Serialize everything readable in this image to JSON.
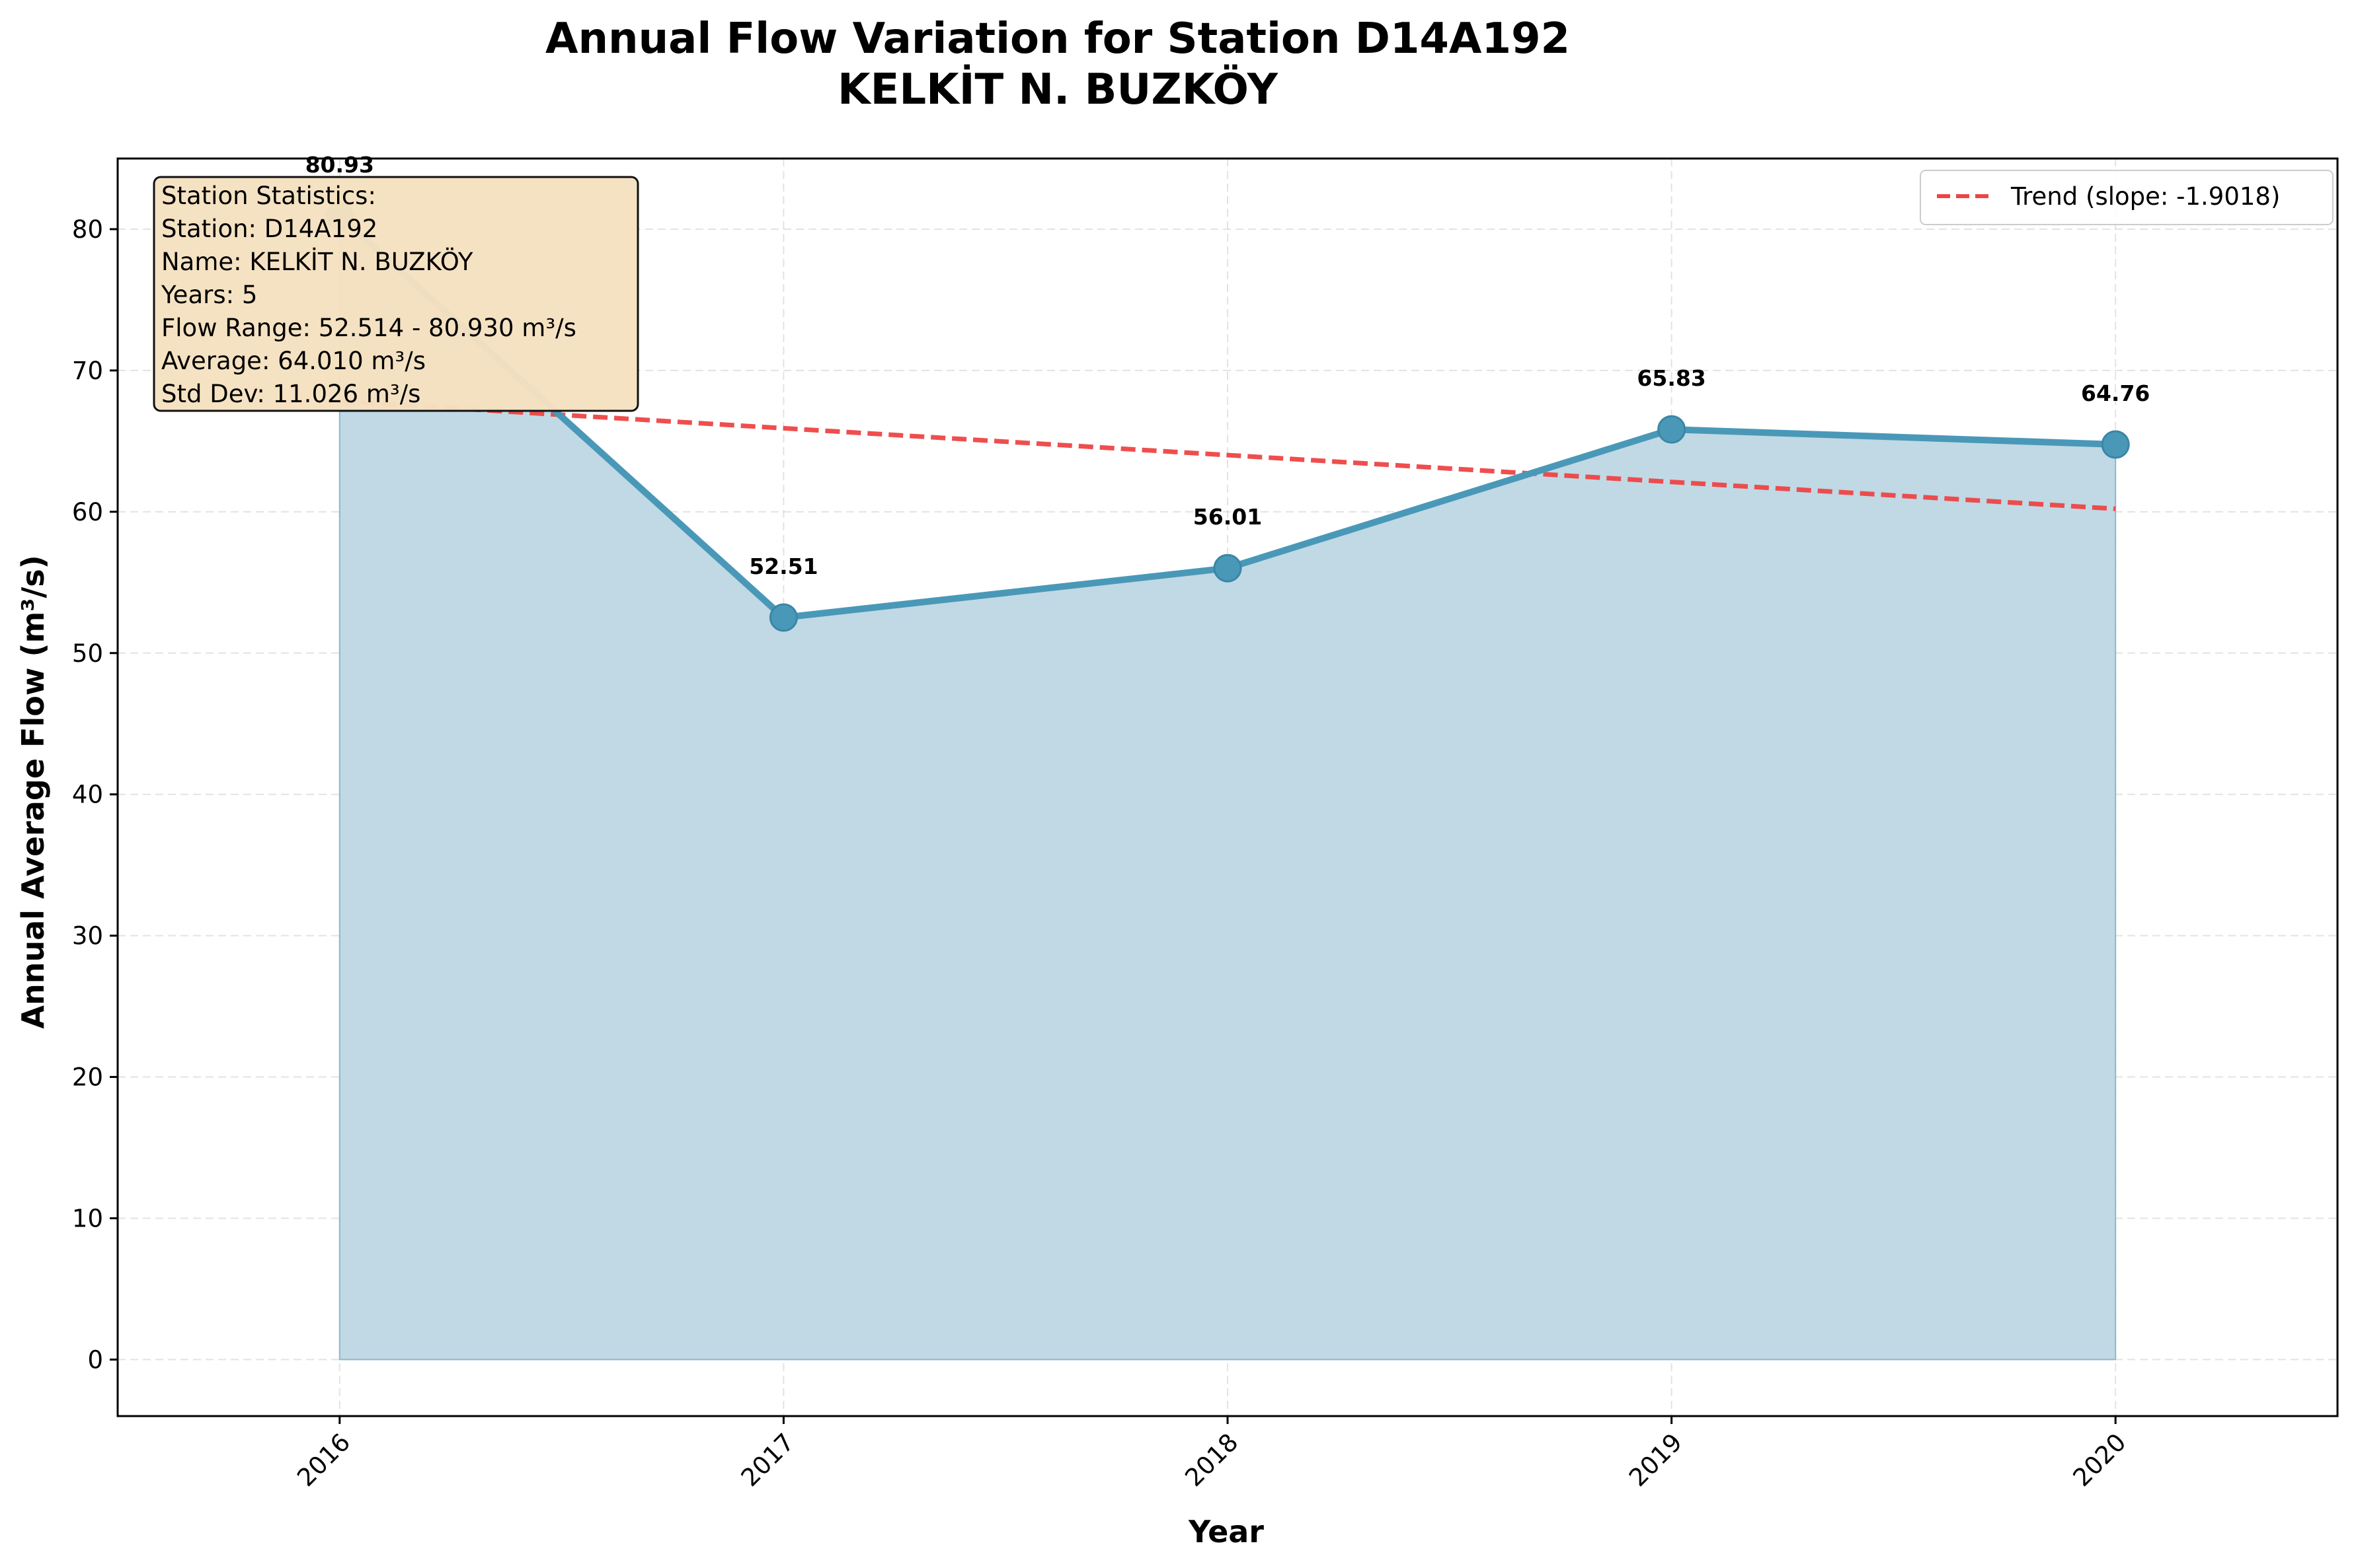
{
  "chart_data": {
    "type": "line",
    "title": "Annual Flow Variation for Station D14A192",
    "subtitle": "KELKİT N. BUZKÖY",
    "xlabel": "Year",
    "ylabel": "Annual Average Flow (m³/s)",
    "x": [
      2016,
      2017,
      2018,
      2019,
      2020
    ],
    "xlim": [
      2015.5,
      2020.5
    ],
    "ylim": [
      -4,
      85
    ],
    "yticks": [
      0,
      10,
      20,
      30,
      40,
      50,
      60,
      70,
      80
    ],
    "grid": true,
    "legend_position": "top-right",
    "series": [
      {
        "kind": "line-with-area",
        "values": [
          80.93,
          52.514,
          56.01,
          65.83,
          64.76
        ],
        "data_labels": [
          "80.93",
          "52.51",
          "56.01",
          "65.83",
          "64.76"
        ],
        "color": "#4a98b8",
        "fill_color": "#c0d9e4"
      },
      {
        "name": "Trend (slope: -1.9018)",
        "kind": "trend",
        "values": [
          67.81,
          65.91,
          64.01,
          62.11,
          60.21
        ],
        "color": "#ee4444",
        "dashed": true
      }
    ],
    "stats_box": {
      "lines": [
        "Station Statistics:",
        "Station: D14A192",
        "Name: KELKİT N. BUZKÖY",
        "Years: 5",
        "Flow Range: 52.514 - 80.930 m³/s",
        "Average: 64.010 m³/s",
        "Std Dev: 11.026 m³/s"
      ],
      "background": "#f5e1c0"
    }
  }
}
